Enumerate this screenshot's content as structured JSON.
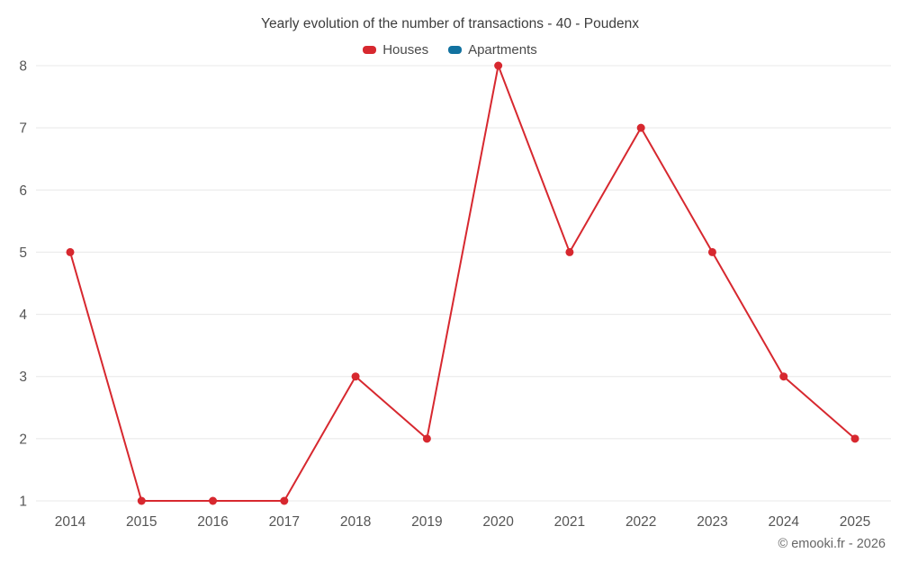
{
  "chart_data": {
    "type": "line",
    "title": "Yearly evolution of the number of transactions - 40 - Poudenx",
    "categories": [
      "2014",
      "2015",
      "2016",
      "2017",
      "2018",
      "2019",
      "2020",
      "2021",
      "2022",
      "2023",
      "2024",
      "2025"
    ],
    "series": [
      {
        "name": "Houses",
        "color": "#d7282f",
        "values": [
          5,
          1,
          1,
          1,
          3,
          2,
          8,
          5,
          7,
          5,
          3,
          2
        ]
      },
      {
        "name": "Apartments",
        "color": "#1272a0",
        "values": []
      }
    ],
    "xlabel": "",
    "ylabel": "",
    "ylim": [
      1,
      8
    ],
    "yticks": [
      1,
      2,
      3,
      4,
      5,
      6,
      7,
      8
    ],
    "grid": "horizontal",
    "legend_position": "top"
  },
  "colors": {
    "gridline": "#e8e8e8",
    "axis_text": "#555555"
  },
  "footer": {
    "text": "© emooki.fr - 2026"
  }
}
